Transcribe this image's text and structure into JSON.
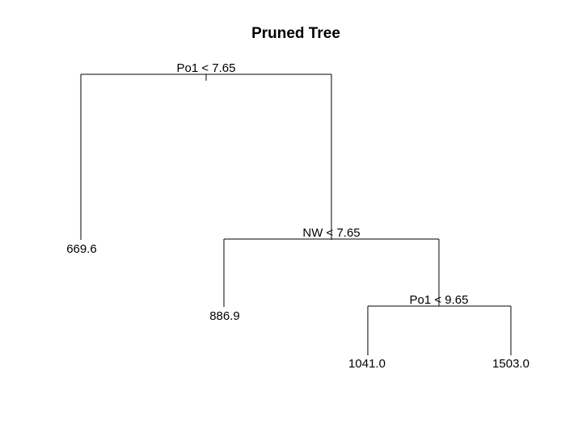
{
  "title": "Pruned Tree",
  "tree": {
    "split": "Po1 < 7.65",
    "left": {
      "leaf": "669.6"
    },
    "right": {
      "split": "NW < 7.65",
      "left": {
        "leaf": "886.9"
      },
      "right": {
        "split": "Po1 < 9.65",
        "left": {
          "leaf": "1041.0"
        },
        "right": {
          "leaf": "1503.0"
        }
      }
    }
  },
  "colors": {
    "background": "#ffffff",
    "line": "#000000",
    "text": "#000000"
  }
}
